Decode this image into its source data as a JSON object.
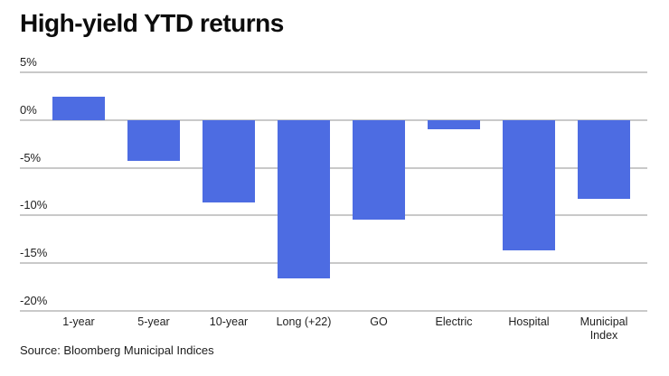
{
  "title": "High-yield YTD returns",
  "source": "Source: Bloomberg Municipal Indices",
  "colors": {
    "bar": "#4d6ce2",
    "gridline": "#c9c9c9",
    "text": "#1f1f1f",
    "background": "#ffffff"
  },
  "chart_data": {
    "type": "bar",
    "title": "High-yield YTD returns",
    "categories": [
      "1-year",
      "5-year",
      "10-year",
      "Long (+22)",
      "GO",
      "Electric",
      "Hospital",
      "Municipal Index"
    ],
    "values": [
      2.4,
      -4.3,
      -8.6,
      -16.6,
      -10.4,
      -1.0,
      -13.7,
      -8.3
    ],
    "unit": "%",
    "xlabel": "",
    "ylabel": "",
    "ylim": [
      -20,
      5
    ],
    "y_ticks": [
      5,
      0,
      -5,
      -10,
      -15,
      -20
    ],
    "y_tick_labels": [
      "5%",
      "0%",
      "-5%",
      "-10%",
      "-15%",
      "-20%"
    ],
    "grid": true,
    "legend": false,
    "source": "Source: Bloomberg Municipal Indices"
  }
}
